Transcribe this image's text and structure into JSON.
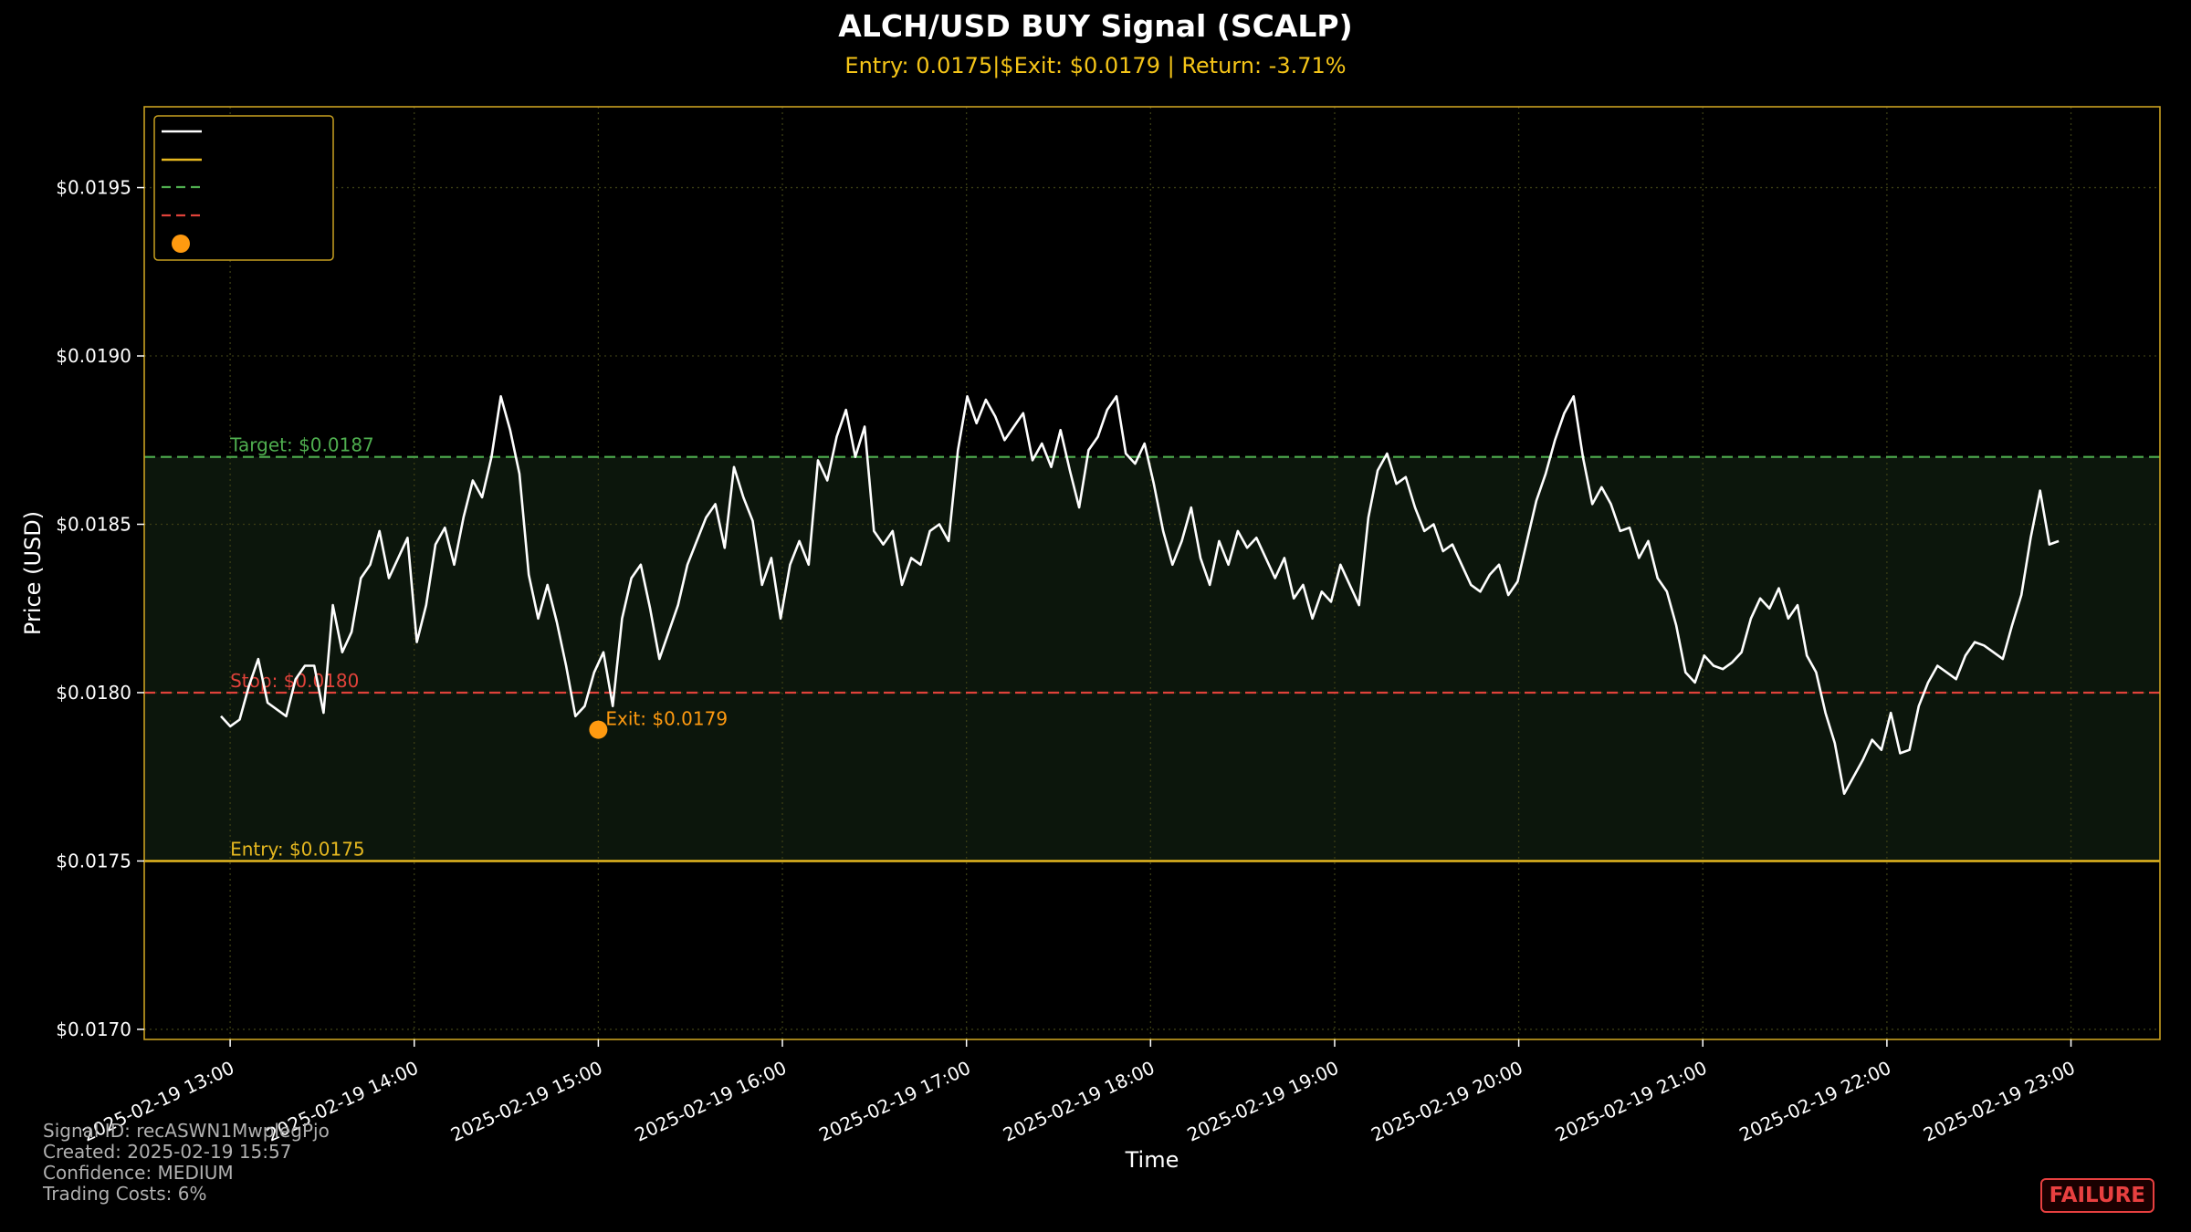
{
  "chart_data": {
    "type": "line",
    "title": "ALCH/USD BUY Signal (SCALP)",
    "subtitle": "Entry: 0.0175|$Exit: $0.0179 | Return: -3.71%",
    "xlabel": "Time",
    "ylabel": "Price (USD)",
    "ylim": [
      0.01697,
      0.01974
    ],
    "xlim": [
      "2025-02-19 12:32",
      "2025-02-19 23:29"
    ],
    "y_ticks": [
      "$0.0170",
      "$0.0175",
      "$0.0180",
      "$0.0185",
      "$0.0190",
      "$0.0195"
    ],
    "y_tick_values": [
      0.017,
      0.0175,
      0.018,
      0.0185,
      0.019,
      0.0195
    ],
    "x_ticks": [
      "2025-02-19 13:00",
      "2025-02-19 14:00",
      "2025-02-19 15:00",
      "2025-02-19 16:00",
      "2025-02-19 17:00",
      "2025-02-19 18:00",
      "2025-02-19 19:00",
      "2025-02-19 20:00",
      "2025-02-19 21:00",
      "2025-02-19 22:00",
      "2025-02-19 23:00"
    ],
    "grid": true,
    "legend": "top-left",
    "levels": {
      "entry": {
        "value": 0.0175,
        "label": "Entry: $0.0175",
        "color": "#e6b820"
      },
      "target": {
        "value": 0.0187,
        "label": "Target: $0.0187",
        "color": "#4fae4f"
      },
      "stop": {
        "value": 0.018,
        "label": "Stop: $0.0180",
        "color": "#e0423a"
      }
    },
    "exit_point": {
      "x": "2025-02-19 15:00",
      "value": 0.01789,
      "label": "Exit: $0.0179",
      "color": "#ff9a10"
    },
    "series": [
      {
        "color": "#ffffff",
        "x_start": "2025-02-19 12:57",
        "x_end": "2025-02-19 22:56",
        "values": [
          0.01793,
          0.0179,
          0.01792,
          0.01802,
          0.0181,
          0.01797,
          0.01795,
          0.01793,
          0.01804,
          0.01808,
          0.01808,
          0.01794,
          0.01826,
          0.01812,
          0.01818,
          0.01834,
          0.01838,
          0.01848,
          0.01834,
          0.0184,
          0.01846,
          0.01815,
          0.01826,
          0.01844,
          0.01849,
          0.01838,
          0.01852,
          0.01863,
          0.01858,
          0.0187,
          0.01888,
          0.01878,
          0.01865,
          0.01835,
          0.01822,
          0.01832,
          0.01821,
          0.01808,
          0.01793,
          0.01796,
          0.01806,
          0.01812,
          0.01796,
          0.01822,
          0.01834,
          0.01838,
          0.01825,
          0.0181,
          0.01818,
          0.01826,
          0.01838,
          0.01845,
          0.01852,
          0.01856,
          0.01843,
          0.01867,
          0.01858,
          0.01851,
          0.01832,
          0.0184,
          0.01822,
          0.01838,
          0.01845,
          0.01838,
          0.01869,
          0.01863,
          0.01876,
          0.01884,
          0.0187,
          0.01879,
          0.01848,
          0.01844,
          0.01848,
          0.01832,
          0.0184,
          0.01838,
          0.01848,
          0.0185,
          0.01845,
          0.01872,
          0.01888,
          0.0188,
          0.01887,
          0.01882,
          0.01875,
          0.01879,
          0.01883,
          0.01869,
          0.01874,
          0.01867,
          0.01878,
          0.01866,
          0.01855,
          0.01872,
          0.01876,
          0.01884,
          0.01888,
          0.01871,
          0.01868,
          0.01874,
          0.01862,
          0.01848,
          0.01838,
          0.01845,
          0.01855,
          0.0184,
          0.01832,
          0.01845,
          0.01838,
          0.01848,
          0.01843,
          0.01846,
          0.0184,
          0.01834,
          0.0184,
          0.01828,
          0.01832,
          0.01822,
          0.0183,
          0.01827,
          0.01838,
          0.01832,
          0.01826,
          0.01852,
          0.01866,
          0.01871,
          0.01862,
          0.01864,
          0.01855,
          0.01848,
          0.0185,
          0.01842,
          0.01844,
          0.01838,
          0.01832,
          0.0183,
          0.01835,
          0.01838,
          0.01829,
          0.01833,
          0.01845,
          0.01857,
          0.01865,
          0.01875,
          0.01883,
          0.01888,
          0.0187,
          0.01856,
          0.01861,
          0.01856,
          0.01848,
          0.01849,
          0.0184,
          0.01845,
          0.01834,
          0.0183,
          0.0182,
          0.01806,
          0.01803,
          0.01811,
          0.01808,
          0.01807,
          0.01809,
          0.01812,
          0.01822,
          0.01828,
          0.01825,
          0.01831,
          0.01822,
          0.01826,
          0.01811,
          0.01806,
          0.01794,
          0.01785,
          0.0177,
          0.01775,
          0.0178,
          0.01786,
          0.01783,
          0.01794,
          0.01782,
          0.01783,
          0.01796,
          0.01803,
          0.01808,
          0.01806,
          0.01804,
          0.01811,
          0.01815,
          0.01814,
          0.01812,
          0.0181,
          0.0182,
          0.01829,
          0.01846,
          0.0186,
          0.01844,
          0.01845
        ]
      }
    ]
  },
  "footer": {
    "signal_id": "Signal ID: recASWN1MwplegPjo",
    "created": "Created: 2025-02-19 15:57",
    "confidence": "Confidence: MEDIUM",
    "costs": "Trading Costs: 6%"
  },
  "badge": {
    "label": "FAILURE",
    "color": "#e84040"
  }
}
